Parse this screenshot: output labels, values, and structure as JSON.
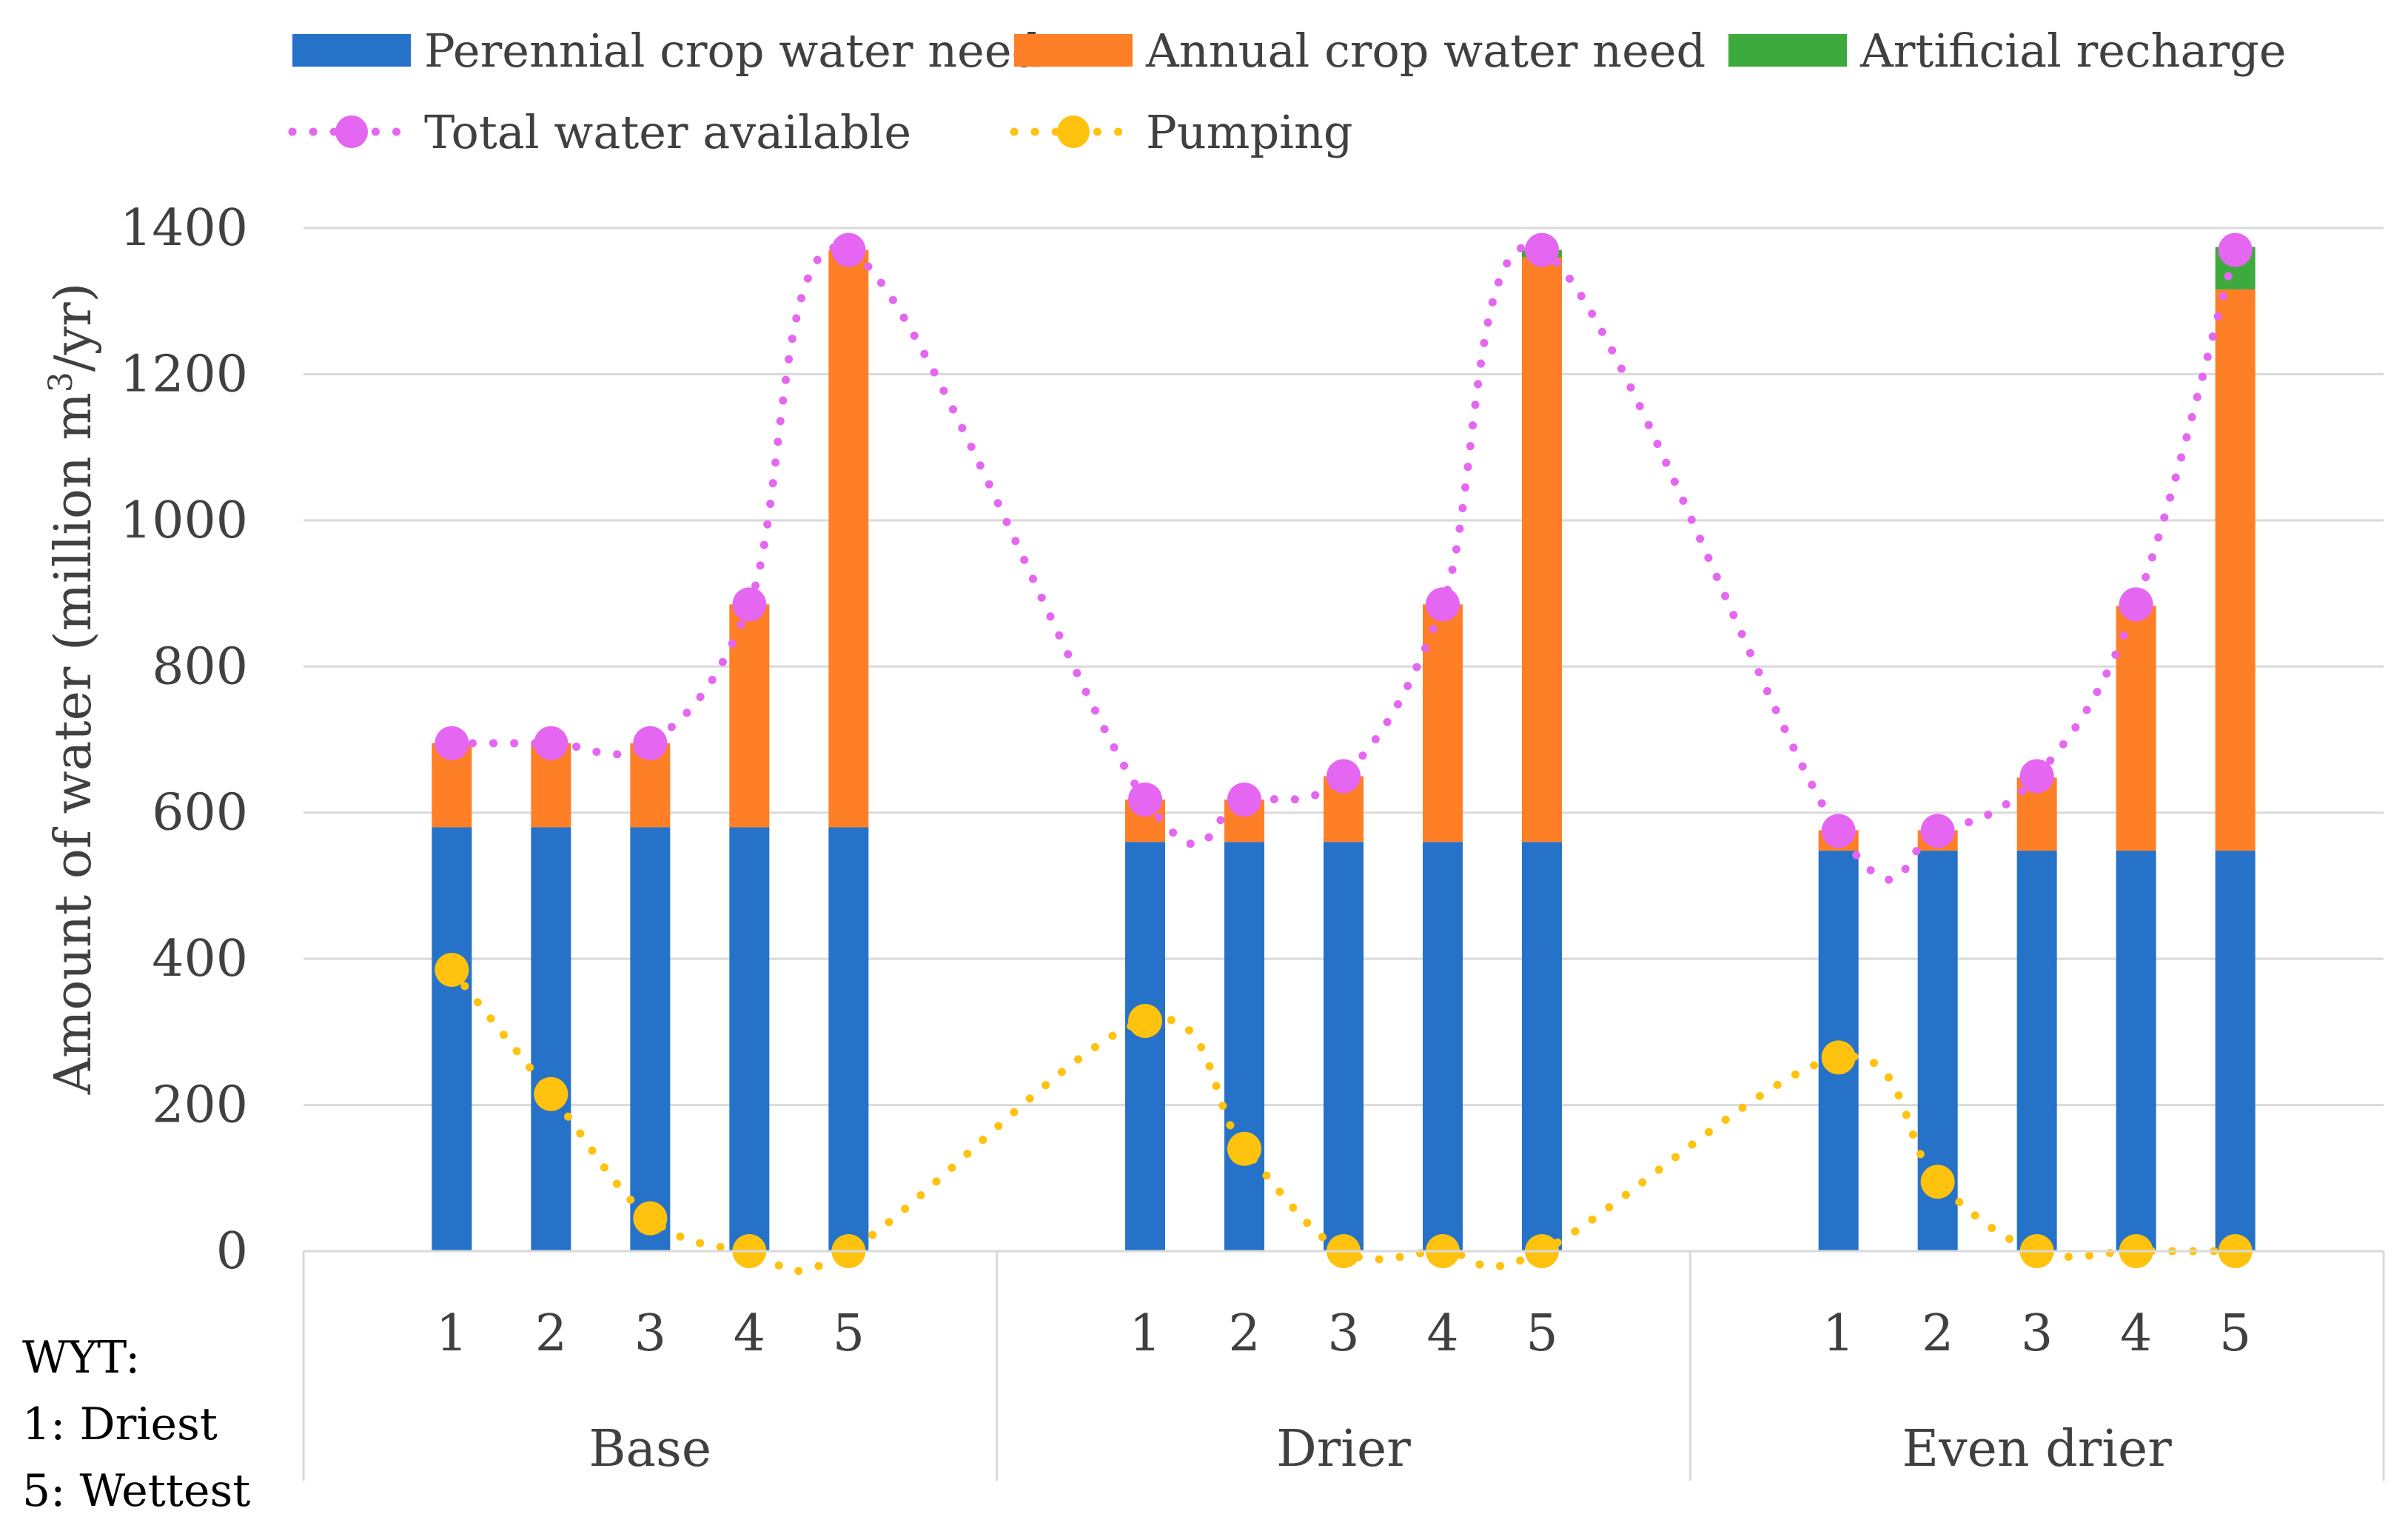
{
  "chart_data": {
    "type": "bar",
    "stacked": true,
    "ylabel": "Amount of water (million m3/yr)",
    "ylabel_prefix": "Amount of water (million m",
    "ylabel_sup": "3",
    "ylabel_suffix": "/yr)",
    "ylim": [
      0,
      1400
    ],
    "yticks": [
      0,
      200,
      400,
      600,
      800,
      1000,
      1200,
      1400
    ],
    "ytick_labels": [
      "0",
      "200",
      "400",
      "600",
      "800",
      "1000",
      "1200",
      "1400"
    ],
    "grid": true,
    "legend_position": "top",
    "groups": [
      {
        "name": "Base",
        "categories": [
          "1",
          "2",
          "3",
          "4",
          "5"
        ]
      },
      {
        "name": "Drier",
        "categories": [
          "1",
          "2",
          "3",
          "4",
          "5"
        ]
      },
      {
        "name": "Even drier",
        "categories": [
          "1",
          "2",
          "3",
          "4",
          "5"
        ]
      }
    ],
    "bar_series": [
      {
        "name": "Perennial crop water need",
        "color": "#2672C8",
        "values": [
          580,
          580,
          580,
          580,
          580,
          560,
          560,
          560,
          560,
          560,
          548,
          548,
          548,
          548,
          548
        ]
      },
      {
        "name": "Annual crop water need",
        "color": "#FF7F27",
        "values": [
          115,
          115,
          115,
          305,
          790,
          58,
          58,
          90,
          325,
          800,
          28,
          28,
          100,
          335,
          768
        ]
      },
      {
        "name": "Artificial recharge",
        "color": "#3DAA3D",
        "values": [
          0,
          0,
          0,
          0,
          0,
          0,
          0,
          0,
          0,
          10,
          0,
          0,
          0,
          0,
          58
        ]
      }
    ],
    "line_series": [
      {
        "name": "Total water available",
        "color": "#E566F0",
        "values": [
          695,
          695,
          695,
          885,
          1370,
          618,
          618,
          650,
          885,
          1370,
          575,
          575,
          650,
          885,
          1370
        ]
      },
      {
        "name": "Pumping",
        "color": "#FFC20E",
        "values": [
          385,
          215,
          45,
          0,
          0,
          315,
          140,
          0,
          0,
          0,
          265,
          95,
          0,
          0,
          0
        ]
      }
    ],
    "annotation": [
      "WYT:",
      "1: Driest",
      "5: Wettest"
    ]
  }
}
